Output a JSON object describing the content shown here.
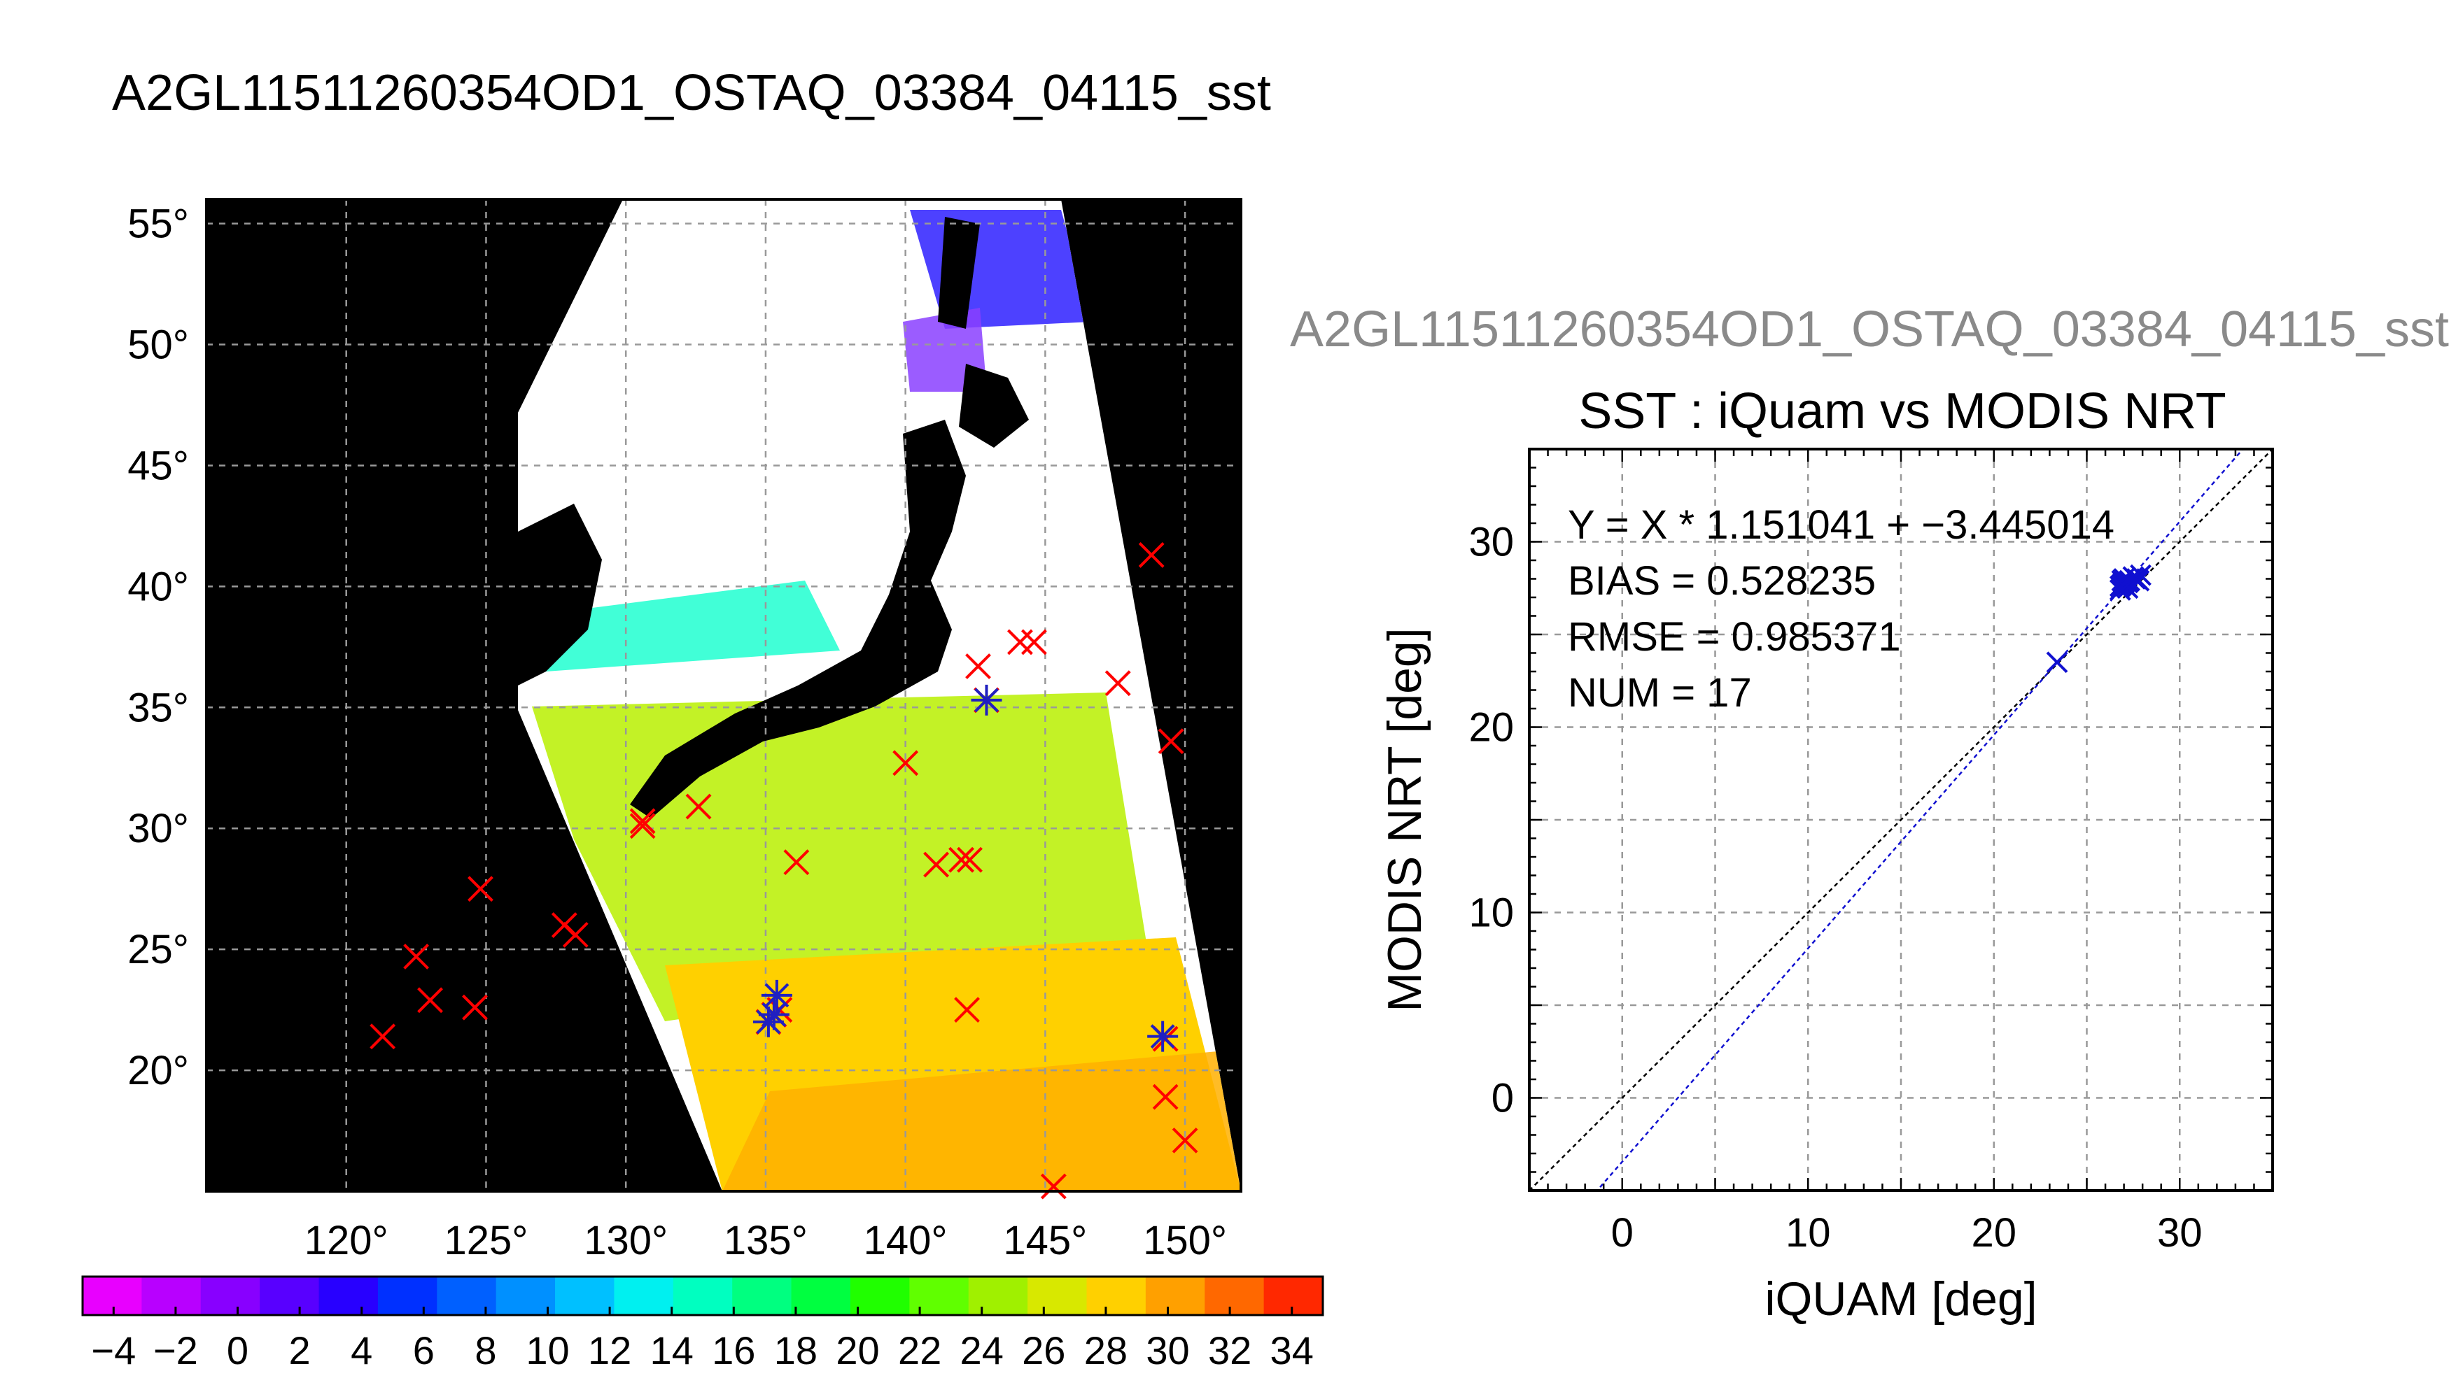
{
  "title": "A2GL11511260354OD1_OSTAQ_03384_04115_sst",
  "chart_data": [
    {
      "type": "map",
      "title": "A2GL11511260354OD1_OSTAQ_03384_04115_sst",
      "lon_range": [
        115,
        152
      ],
      "lat_range": [
        15,
        56
      ],
      "lon_ticks": [
        120,
        125,
        130,
        135,
        140,
        145,
        150
      ],
      "lat_ticks": [
        20,
        25,
        30,
        35,
        40,
        45,
        50,
        55
      ],
      "degree_symbol": "°",
      "grid": true,
      "colorbar": {
        "min": -5,
        "max": 35,
        "tick_labels": [
          "−4",
          "−2",
          "0",
          "2",
          "4",
          "6",
          "8",
          "10",
          "12",
          "14",
          "16",
          "18",
          "20",
          "22",
          "24",
          "26",
          "28",
          "30",
          "32",
          "34"
        ],
        "tick_values": [
          -4,
          -2,
          0,
          2,
          4,
          6,
          8,
          10,
          12,
          14,
          16,
          18,
          20,
          22,
          24,
          26,
          28,
          30,
          32,
          34
        ],
        "colors": [
          "#e800ff",
          "#b800ff",
          "#8800ff",
          "#5800ff",
          "#2800ff",
          "#0030ff",
          "#0060ff",
          "#0090ff",
          "#00c0ff",
          "#00f0f0",
          "#00ffc0",
          "#00ff80",
          "#00ff40",
          "#20ff00",
          "#60ff00",
          "#a0f000",
          "#d8e800",
          "#ffd000",
          "#ffa000",
          "#ff6800",
          "#ff2800"
        ]
      },
      "red_markers": [
        [
          121.3,
          21.4
        ],
        [
          122.5,
          24.7
        ],
        [
          123.0,
          22.9
        ],
        [
          124.6,
          22.6
        ],
        [
          124.8,
          27.5
        ],
        [
          127.8,
          26.0
        ],
        [
          128.2,
          25.6
        ],
        [
          130.6,
          30.3
        ],
        [
          130.6,
          30.1
        ],
        [
          132.6,
          30.9
        ],
        [
          135.1,
          22.0
        ],
        [
          135.3,
          22.3
        ],
        [
          135.5,
          22.5
        ],
        [
          136.1,
          28.6
        ],
        [
          140.0,
          32.7
        ],
        [
          141.1,
          28.5
        ],
        [
          142.0,
          28.7
        ],
        [
          142.3,
          28.7
        ],
        [
          142.2,
          22.5
        ],
        [
          142.6,
          36.7
        ],
        [
          142.9,
          35.3
        ],
        [
          144.1,
          37.7
        ],
        [
          144.6,
          37.7
        ],
        [
          147.6,
          36.0
        ],
        [
          148.8,
          41.3
        ],
        [
          149.3,
          21.3
        ],
        [
          149.3,
          18.9
        ],
        [
          149.5,
          33.6
        ],
        [
          150.0,
          17.1
        ],
        [
          145.3,
          15.2
        ]
      ],
      "blue_markers": [
        [
          135.4,
          23.1
        ],
        [
          135.1,
          22.0
        ],
        [
          135.3,
          22.3
        ],
        [
          142.9,
          35.3
        ],
        [
          149.2,
          21.4
        ]
      ]
    },
    {
      "type": "scatter",
      "subtitle": "SST : iQuam vs MODIS NRT",
      "xlabel": "iQUAM [deg]",
      "ylabel": "MODIS NRT [deg]",
      "xlim": [
        -5,
        35
      ],
      "ylim": [
        -5,
        35
      ],
      "xticks": [
        0,
        10,
        20,
        30
      ],
      "yticks": [
        0,
        10,
        20,
        30
      ],
      "grid": true,
      "annotations": [
        "Y = X * 1.151041 + −3.445014",
        "BIAS = 0.528235",
        "RMSE = 0.985371",
        "NUM = 17"
      ],
      "regression": {
        "slope": 1.151041,
        "intercept": -3.445014
      },
      "points": [
        [
          23.4,
          23.5
        ],
        [
          26.8,
          27.6
        ],
        [
          26.9,
          27.9
        ],
        [
          27.0,
          27.7
        ],
        [
          27.2,
          27.8
        ],
        [
          27.1,
          27.6
        ],
        [
          27.6,
          28.0
        ],
        [
          27.9,
          28.2
        ],
        [
          27.7,
          28.0
        ],
        [
          26.8,
          27.4
        ],
        [
          27.0,
          28.0
        ],
        [
          27.3,
          27.9
        ],
        [
          27.8,
          27.9
        ],
        [
          26.9,
          27.7
        ],
        [
          27.2,
          27.5
        ],
        [
          27.5,
          28.1
        ],
        [
          27.0,
          27.8
        ]
      ]
    }
  ]
}
